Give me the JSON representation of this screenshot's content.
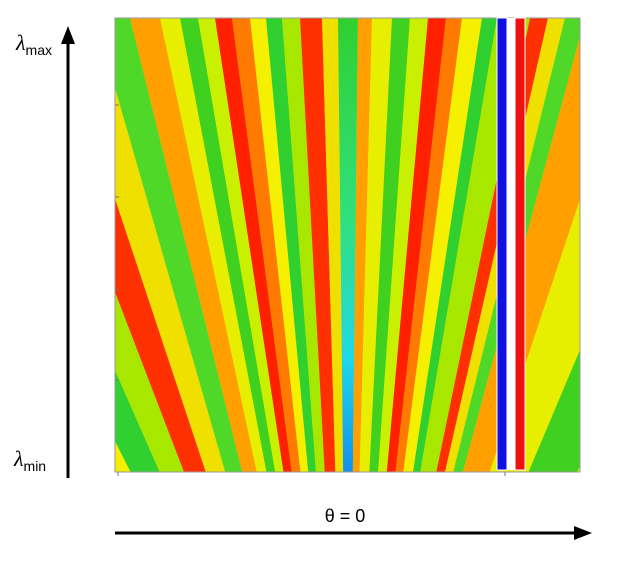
{
  "y_axis": {
    "top_label": {
      "symbol": "λ",
      "subscript": "max"
    },
    "bottom_label": {
      "symbol": "λ",
      "subscript": "min"
    }
  },
  "x_axis": {
    "label": "θ = 0"
  }
}
